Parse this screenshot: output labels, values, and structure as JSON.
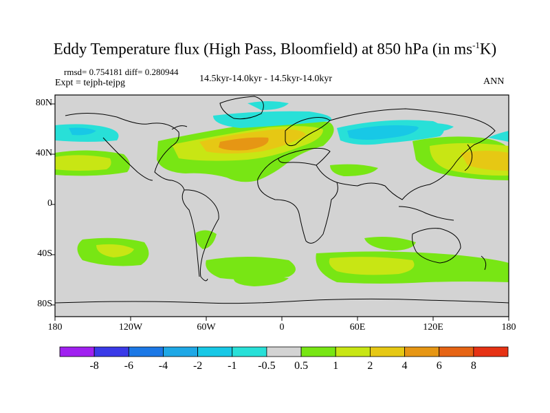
{
  "title_main": "Eddy Temperature flux (High Pass, Bloomfield) at 850 hPa (in ms",
  "title_sup": "-1",
  "title_end": "K)",
  "stats": "rmsd= 0.754181 diff= 0.280944",
  "expt": "Expt = tejph-tejpg",
  "period": "14.5kyr-14.0kyr - 14.5kyr-14.0kyr",
  "season": "ANN",
  "y_ticks": [
    "80N",
    "40N",
    "0",
    "40S",
    "80S"
  ],
  "x_ticks": [
    "180",
    "120W",
    "60W",
    "0",
    "60E",
    "120E",
    "180"
  ],
  "colorbar": {
    "labels": [
      "-8",
      "-6",
      "-4",
      "-2",
      "-1",
      "-0.5",
      "0.5",
      "1",
      "2",
      "4",
      "6",
      "8"
    ],
    "colors": [
      "#a020f0",
      "#3a3ae8",
      "#1c78e6",
      "#1ea8e6",
      "#18c8e6",
      "#28e0d8",
      "#d3d3d3",
      "#78e614",
      "#c8e614",
      "#e6c814",
      "#e69614",
      "#e66414",
      "#e63214"
    ]
  },
  "map": {
    "background": "#d3d3d3",
    "lat_range": [
      -90,
      90
    ],
    "lon_range": [
      -180,
      180
    ]
  }
}
